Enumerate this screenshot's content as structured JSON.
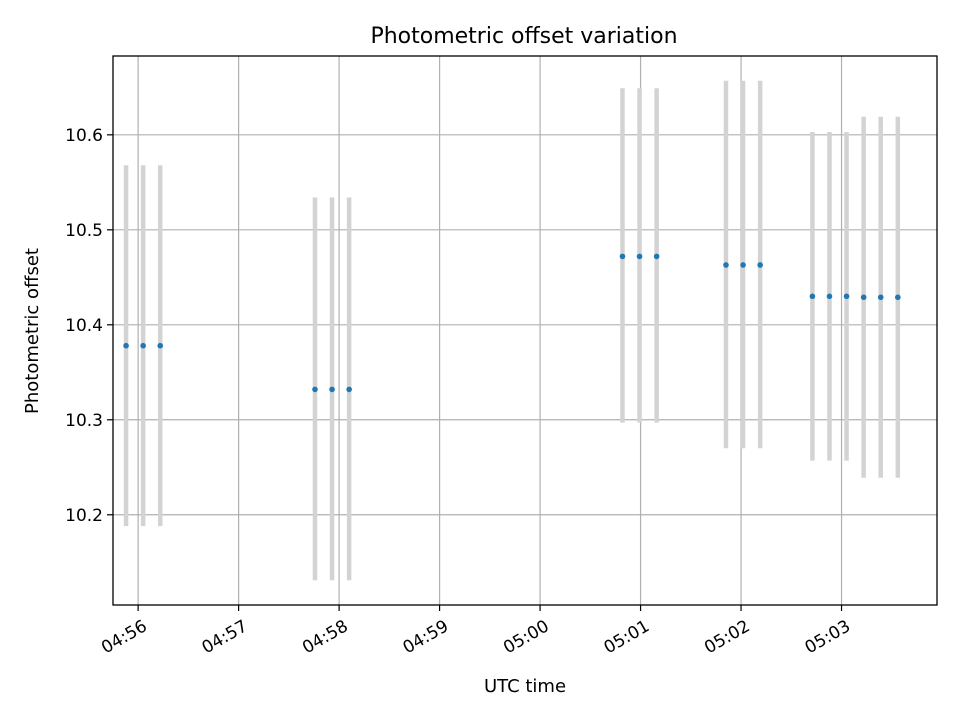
{
  "chart_data": {
    "type": "scatter",
    "title": "Photometric offset variation",
    "xlabel": "UTC time",
    "ylabel": "Photometric offset",
    "grid": true,
    "colors": {
      "point": "#1f77b4",
      "error_bar": "#d3d3d3",
      "grid": "#b0b0b0"
    },
    "xlim": [
      -0.25,
      7.95
    ],
    "ylim": [
      10.105,
      10.683
    ],
    "x_unit": "minutes after 04:56 UTC",
    "x_ticks": [
      {
        "value": 0,
        "label": "04:56"
      },
      {
        "value": 1,
        "label": "04:57"
      },
      {
        "value": 2,
        "label": "04:58"
      },
      {
        "value": 3,
        "label": "04:59"
      },
      {
        "value": 4,
        "label": "05:00"
      },
      {
        "value": 5,
        "label": "05:01"
      },
      {
        "value": 6,
        "label": "05:02"
      },
      {
        "value": 7,
        "label": "05:03"
      }
    ],
    "y_ticks": [
      {
        "value": 10.2,
        "label": "10.2"
      },
      {
        "value": 10.3,
        "label": "10.3"
      },
      {
        "value": 10.4,
        "label": "10.4"
      },
      {
        "value": 10.5,
        "label": "10.5"
      },
      {
        "value": 10.6,
        "label": "10.6"
      }
    ],
    "series": [
      {
        "name": "photometric offset",
        "points": [
          {
            "x": -0.12,
            "y": 10.378,
            "yerr_low": 10.188,
            "yerr_high": 10.568
          },
          {
            "x": 0.05,
            "y": 10.378,
            "yerr_low": 10.188,
            "yerr_high": 10.568
          },
          {
            "x": 0.22,
            "y": 10.378,
            "yerr_low": 10.188,
            "yerr_high": 10.568
          },
          {
            "x": 1.76,
            "y": 10.332,
            "yerr_low": 10.131,
            "yerr_high": 10.534
          },
          {
            "x": 1.93,
            "y": 10.332,
            "yerr_low": 10.131,
            "yerr_high": 10.534
          },
          {
            "x": 2.1,
            "y": 10.332,
            "yerr_low": 10.131,
            "yerr_high": 10.534
          },
          {
            "x": 4.82,
            "y": 10.472,
            "yerr_low": 10.297,
            "yerr_high": 10.649
          },
          {
            "x": 4.99,
            "y": 10.472,
            "yerr_low": 10.297,
            "yerr_high": 10.649
          },
          {
            "x": 5.16,
            "y": 10.472,
            "yerr_low": 10.297,
            "yerr_high": 10.649
          },
          {
            "x": 5.85,
            "y": 10.463,
            "yerr_low": 10.27,
            "yerr_high": 10.657
          },
          {
            "x": 6.02,
            "y": 10.463,
            "yerr_low": 10.27,
            "yerr_high": 10.657
          },
          {
            "x": 6.19,
            "y": 10.463,
            "yerr_low": 10.27,
            "yerr_high": 10.657
          },
          {
            "x": 6.71,
            "y": 10.43,
            "yerr_low": 10.257,
            "yerr_high": 10.603
          },
          {
            "x": 6.88,
            "y": 10.43,
            "yerr_low": 10.257,
            "yerr_high": 10.603
          },
          {
            "x": 7.05,
            "y": 10.43,
            "yerr_low": 10.257,
            "yerr_high": 10.603
          },
          {
            "x": 7.22,
            "y": 10.429,
            "yerr_low": 10.239,
            "yerr_high": 10.619
          },
          {
            "x": 7.39,
            "y": 10.429,
            "yerr_low": 10.239,
            "yerr_high": 10.619
          },
          {
            "x": 7.56,
            "y": 10.429,
            "yerr_low": 10.239,
            "yerr_high": 10.619
          }
        ]
      }
    ]
  }
}
